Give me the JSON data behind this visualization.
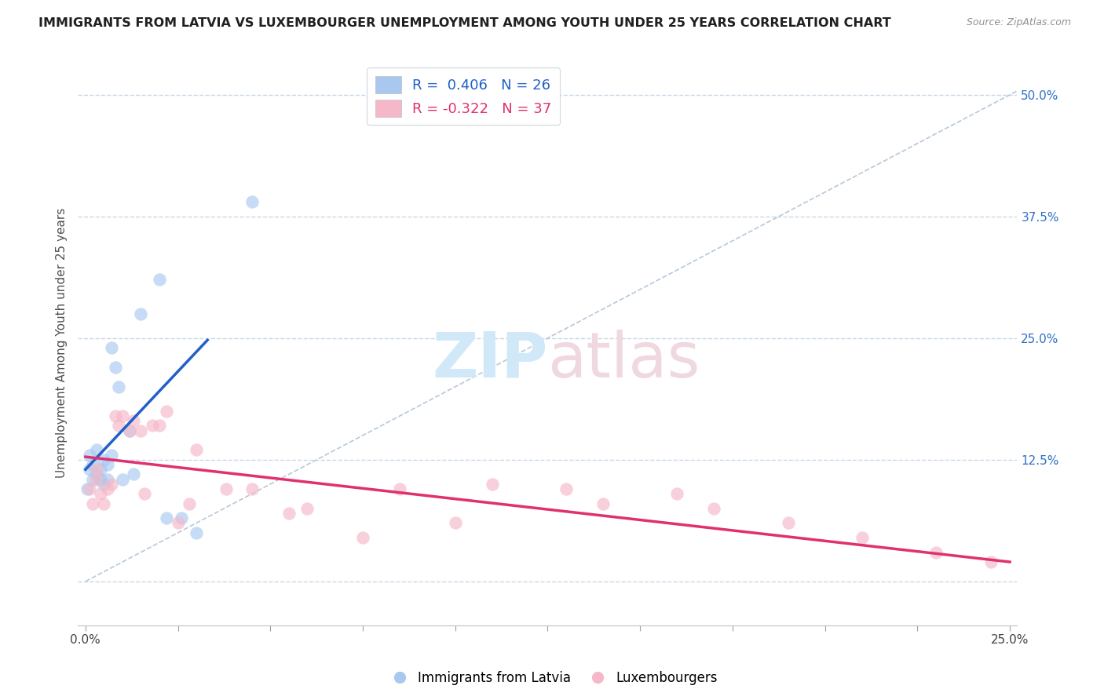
{
  "title": "IMMIGRANTS FROM LATVIA VS LUXEMBOURGER UNEMPLOYMENT AMONG YOUTH UNDER 25 YEARS CORRELATION CHART",
  "source": "Source: ZipAtlas.com",
  "ylabel": "Unemployment Among Youth under 25 years",
  "ytick_labels": [
    "",
    "12.5%",
    "25.0%",
    "37.5%",
    "50.0%"
  ],
  "ytick_values": [
    0.0,
    0.125,
    0.25,
    0.375,
    0.5
  ],
  "xtick_values": [
    0.0,
    0.025,
    0.05,
    0.075,
    0.1,
    0.125,
    0.15,
    0.175,
    0.2,
    0.225,
    0.25
  ],
  "xlim": [
    -0.002,
    0.252
  ],
  "ylim": [
    -0.045,
    0.535
  ],
  "blue_R": 0.406,
  "blue_N": 26,
  "pink_R": -0.322,
  "pink_N": 37,
  "blue_scatter_x": [
    0.0005,
    0.001,
    0.001,
    0.002,
    0.002,
    0.003,
    0.003,
    0.004,
    0.004,
    0.005,
    0.005,
    0.006,
    0.006,
    0.007,
    0.007,
    0.008,
    0.009,
    0.01,
    0.012,
    0.013,
    0.015,
    0.02,
    0.022,
    0.026,
    0.03,
    0.045
  ],
  "blue_scatter_y": [
    0.095,
    0.115,
    0.13,
    0.105,
    0.12,
    0.11,
    0.135,
    0.105,
    0.115,
    0.125,
    0.1,
    0.12,
    0.105,
    0.13,
    0.24,
    0.22,
    0.2,
    0.105,
    0.155,
    0.11,
    0.275,
    0.31,
    0.065,
    0.065,
    0.05,
    0.39
  ],
  "pink_scatter_x": [
    0.001,
    0.002,
    0.003,
    0.003,
    0.004,
    0.005,
    0.006,
    0.007,
    0.008,
    0.009,
    0.01,
    0.012,
    0.013,
    0.015,
    0.016,
    0.018,
    0.02,
    0.022,
    0.025,
    0.028,
    0.03,
    0.038,
    0.045,
    0.055,
    0.06,
    0.075,
    0.085,
    0.1,
    0.11,
    0.13,
    0.14,
    0.16,
    0.17,
    0.19,
    0.21,
    0.23,
    0.245
  ],
  "pink_scatter_y": [
    0.095,
    0.08,
    0.105,
    0.115,
    0.09,
    0.08,
    0.095,
    0.1,
    0.17,
    0.16,
    0.17,
    0.155,
    0.165,
    0.155,
    0.09,
    0.16,
    0.16,
    0.175,
    0.06,
    0.08,
    0.135,
    0.095,
    0.095,
    0.07,
    0.075,
    0.045,
    0.095,
    0.06,
    0.1,
    0.095,
    0.08,
    0.09,
    0.075,
    0.06,
    0.045,
    0.03,
    0.02
  ],
  "blue_line_x": [
    0.0,
    0.033
  ],
  "blue_line_y": [
    0.115,
    0.248
  ],
  "pink_line_x": [
    0.0,
    0.25
  ],
  "pink_line_y": [
    0.128,
    0.02
  ],
  "diagonal_line_x": [
    0.0,
    0.252
  ],
  "diagonal_line_y": [
    0.0,
    0.504
  ],
  "blue_color": "#A8C8F0",
  "pink_color": "#F5B8C8",
  "blue_line_color": "#2060C8",
  "pink_line_color": "#E03070",
  "diagonal_color": "#B8C8D8",
  "background_color": "#FFFFFF",
  "grid_color": "#C8D8E8",
  "title_fontsize": 11.5,
  "label_fontsize": 11,
  "tick_fontsize": 11,
  "legend_label_blue": "Immigrants from Latvia",
  "legend_label_pink": "Luxembourgers"
}
